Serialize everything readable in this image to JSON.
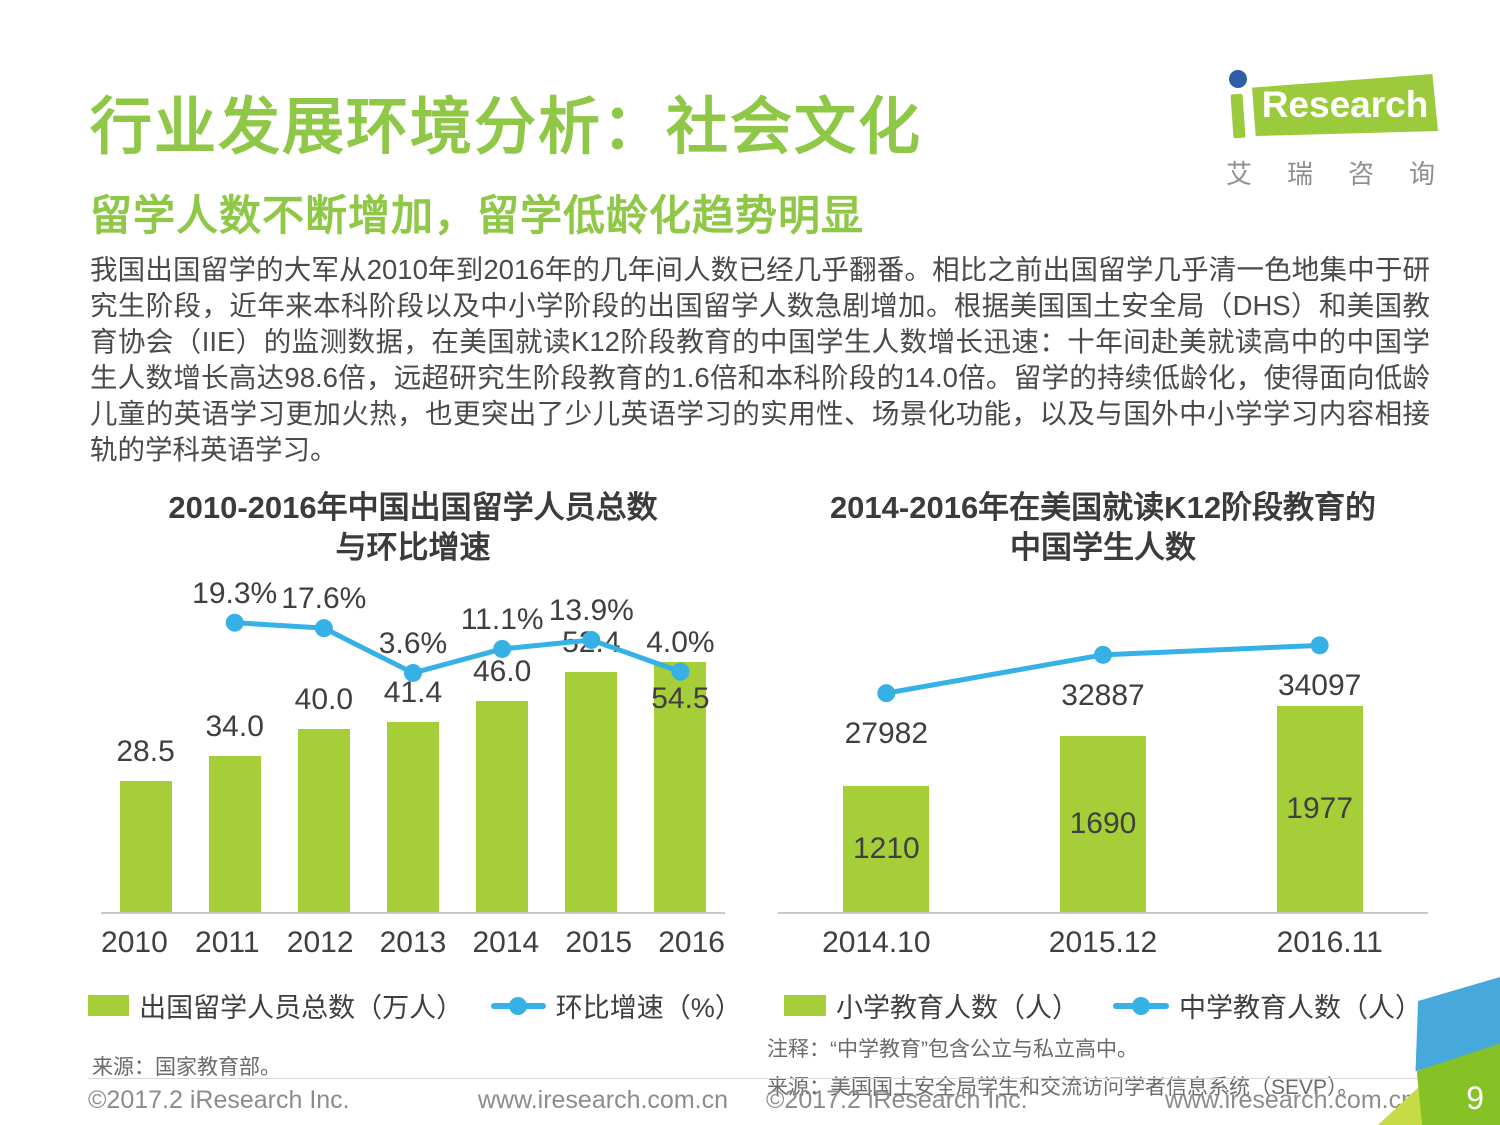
{
  "page": {
    "title": "行业发展环境分析：社会文化",
    "subtitle": "留学人数不断增加，留学低龄化趋势明显",
    "body": "我国出国留学的大军从2010年到2016年的几年间人数已经几乎翻番。相比之前出国留学几乎清一色地集中于研究生阶段，近年来本科阶段以及中小学阶段的出国留学人数急剧增加。根据美国国土安全局（DHS）和美国教育协会（IIE）的监测数据，在美国就读K12阶段教育的中国学生人数增长迅速：十年间赴美就读高中的中国学生人数增长高达98.6倍，远超研究生阶段教育的1.6倍和本科阶段的14.0倍。留学的持续低龄化，使得面向低龄儿童的英语学习更加火热，也更突出了少儿英语学习的实用性、场景化功能，以及与国外中小学学习内容相接轨的学科英语学习。",
    "page_number": "9"
  },
  "logo": {
    "brand": "Research",
    "caption": "艾瑞咨询"
  },
  "footer": {
    "left_copyright": "©2017.2 iResearch Inc.",
    "left_site": "www.iresearch.com.cn",
    "right_copyright": "©2017.2 iResearch Inc.",
    "right_site": "www.iresearch.com.cn"
  },
  "colors": {
    "title_green": "#8FC746",
    "bar_green": "#A5CE39",
    "line_blue": "#35B1E5",
    "logo_dot_blue": "#2F5EA8",
    "corner_blue": "#47A8DB",
    "corner_green": "#86C226",
    "corner_light_green": "#C7DB47",
    "text_dark": "#3f3f3f",
    "text_gray": "#6b6b6b"
  },
  "chart_data": [
    {
      "type": "bar+line",
      "title_lines": [
        "2010-2016年中国出国留学人员总数",
        "与环比增速"
      ],
      "categories": [
        "2010",
        "2011",
        "2012",
        "2013",
        "2014",
        "2015",
        "2016"
      ],
      "series": [
        {
          "name": "出国留学人员总数（万人）",
          "type": "bar",
          "values": [
            28.5,
            34.0,
            40.0,
            41.4,
            46.0,
            52.4,
            54.5
          ],
          "labels": [
            "28.5",
            "34.0",
            "40.0",
            "41.4",
            "46.0",
            "52.4",
            "54.5"
          ],
          "label_position": "outside",
          "label_inside_last": true
        },
        {
          "name": "环比增速（%）",
          "type": "line",
          "values": [
            null,
            19.3,
            17.6,
            3.6,
            11.1,
            13.9,
            4.0
          ],
          "labels": [
            null,
            "19.3%",
            "17.6%",
            "3.6%",
            "11.1%",
            "13.9%",
            "4.0%"
          ],
          "label_position": "above-point"
        }
      ],
      "axes": {
        "bar_axis_max": 72,
        "line_axis_min": -71,
        "line_axis_max": 32,
        "grid": false
      },
      "legend_position": "bottom",
      "source": "来源：国家教育部。"
    },
    {
      "type": "bar+line",
      "title_lines": [
        "2014-2016年在美国就读K12阶段教育的",
        "中国学生人数"
      ],
      "categories": [
        "2014.10",
        "2015.12",
        "2016.11"
      ],
      "series": [
        {
          "name": "小学教育人数（人）",
          "type": "bar",
          "values": [
            1210,
            1690,
            1977
          ],
          "labels": [
            "1210",
            "1690",
            "1977"
          ],
          "label_position": "inside"
        },
        {
          "name": "中学教育人数（人）",
          "type": "line",
          "values": [
            27982,
            32887,
            34097
          ],
          "labels": [
            "27982",
            "32887",
            "34097"
          ],
          "label_position": "below-point"
        }
      ],
      "axes": {
        "bar_axis_max": 3170,
        "line_axis_min": 0,
        "line_axis_max": 42200,
        "grid": false
      },
      "legend_position": "bottom",
      "note": "注释：“中学教育”包含公立与私立高中。",
      "source": "来源：美国国土安全局学生和交流访问学者信息系统（SEVP）。"
    }
  ]
}
